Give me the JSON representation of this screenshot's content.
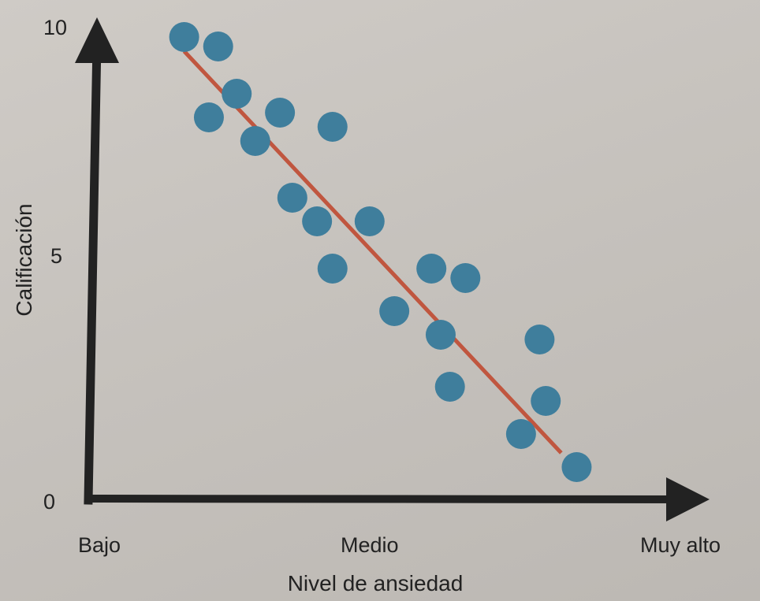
{
  "chart_data": {
    "type": "scatter",
    "title": "",
    "xlabel": "Nivel de ansiedad",
    "ylabel": "Calificación",
    "x_ticks": [
      "Bajo",
      "Medio",
      "Muy alto"
    ],
    "y_ticks": [
      "0",
      "5",
      "10"
    ],
    "ylim": [
      0,
      10
    ],
    "xlim": [
      0,
      10
    ],
    "grid": false,
    "legend": "none",
    "point_color": "#3f7e9c",
    "line_color": "#c0563f",
    "axis_color": "#222222",
    "points": [
      {
        "x": 1.5,
        "y": 9.8
      },
      {
        "x": 2.05,
        "y": 9.6
      },
      {
        "x": 1.9,
        "y": 8.1
      },
      {
        "x": 2.35,
        "y": 8.6
      },
      {
        "x": 3.05,
        "y": 8.2
      },
      {
        "x": 2.65,
        "y": 7.6
      },
      {
        "x": 3.9,
        "y": 7.9
      },
      {
        "x": 3.25,
        "y": 6.4
      },
      {
        "x": 3.65,
        "y": 5.9
      },
      {
        "x": 4.5,
        "y": 5.9
      },
      {
        "x": 3.9,
        "y": 4.9
      },
      {
        "x": 5.5,
        "y": 4.9
      },
      {
        "x": 6.05,
        "y": 4.7
      },
      {
        "x": 4.9,
        "y": 4.0
      },
      {
        "x": 5.65,
        "y": 3.5
      },
      {
        "x": 5.8,
        "y": 2.4
      },
      {
        "x": 7.25,
        "y": 3.4
      },
      {
        "x": 7.35,
        "y": 2.1
      },
      {
        "x": 6.95,
        "y": 1.4
      },
      {
        "x": 7.85,
        "y": 0.7
      }
    ],
    "trend_line": {
      "x": [
        1.5,
        7.6
      ],
      "y": [
        9.5,
        1.0
      ]
    }
  }
}
